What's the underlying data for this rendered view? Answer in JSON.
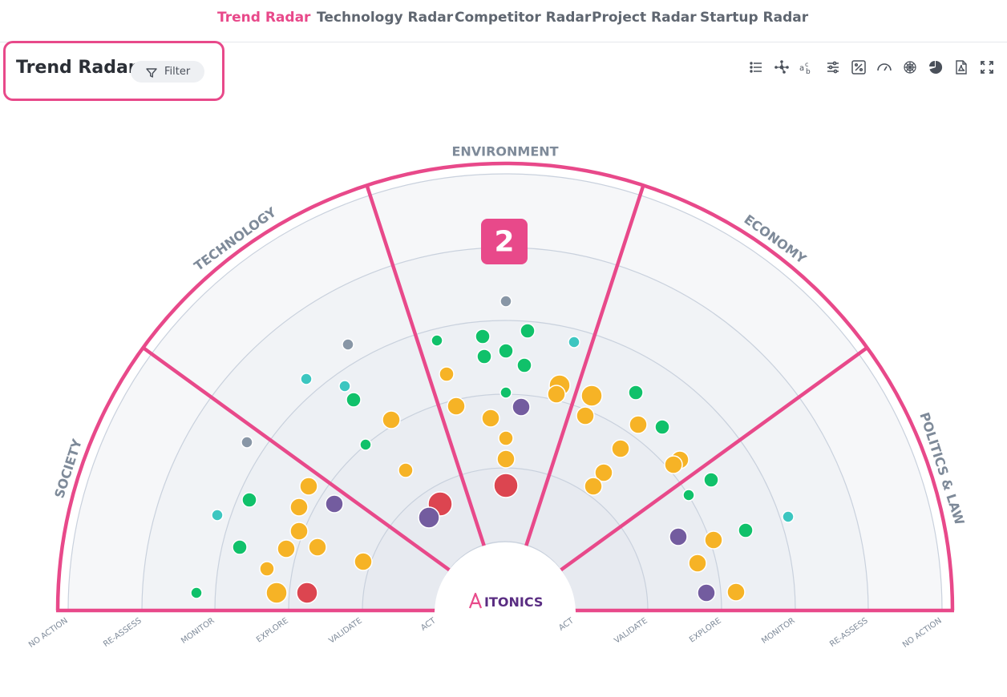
{
  "nav": {
    "tabs": [
      {
        "label": "Trend Radar",
        "active": true
      },
      {
        "label": "Technology Radar",
        "active": false
      },
      {
        "label": "Competitor Radar",
        "active": false
      },
      {
        "label": "Project Radar",
        "active": false
      },
      {
        "label": "Startup Radar",
        "active": false
      }
    ]
  },
  "header": {
    "title": "Trend Radar",
    "filter_label": "Filter"
  },
  "toolbar": {
    "icons": [
      "list-view-icon",
      "network-view-icon",
      "text-labels-icon",
      "settings-sliders-icon",
      "percentage-icon",
      "gauge-icon",
      "radar-icon",
      "pie-chart-icon",
      "pdf-export-icon",
      "fullscreen-icon"
    ]
  },
  "radar": {
    "segments": [
      "SOCIETY",
      "TECHNOLOGY",
      "ENVIRONMENT",
      "ECONOMY",
      "POLITICS & LAW"
    ],
    "rings_left": [
      "NO ACTION",
      "RE-ASSESS",
      "MONITOR",
      "EXPLORE",
      "VALIDATE",
      "ACT"
    ],
    "rings_right": [
      "ACT",
      "VALIDATE",
      "EXPLORE",
      "MONITOR",
      "RE-ASSESS",
      "NO ACTION"
    ],
    "callout": "2",
    "logo_text": "ITONICS",
    "colors": {
      "accent": "#e8498a",
      "orange": "#f6b326",
      "green": "#10c16a",
      "red": "#dc4550",
      "purple": "#735c9f",
      "teal": "#3cc6c0",
      "gray": "#8896a6"
    }
  }
}
